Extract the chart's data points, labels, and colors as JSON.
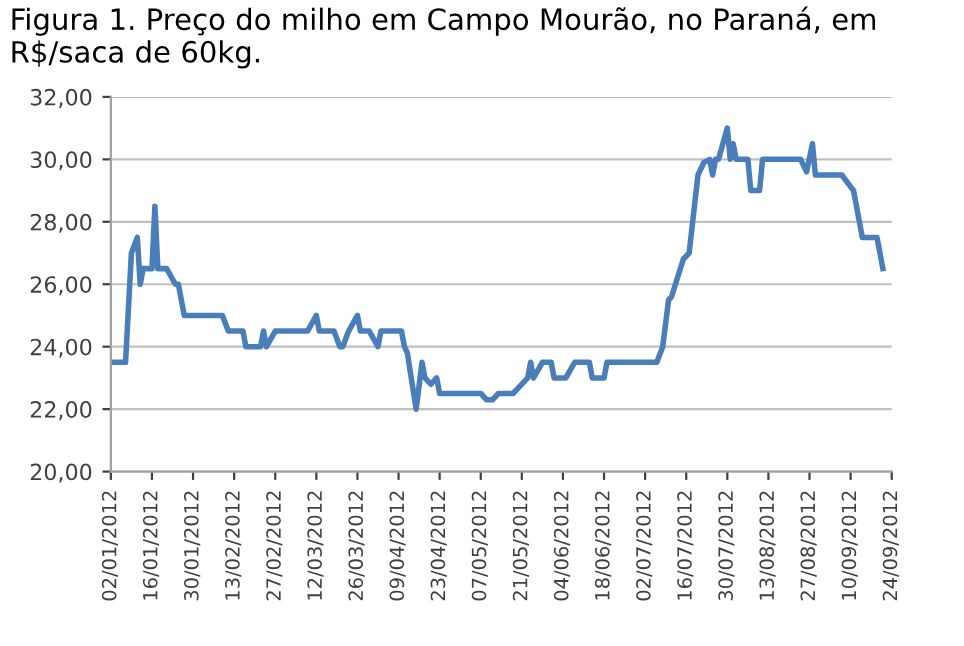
{
  "chart_data": {
    "type": "line",
    "title": "Figura 1. Preço do milho em Campo Mourão, no Paraná, em R$/saca de 60kg.",
    "x": [
      "2012-01-02",
      "2012-01-07",
      "2012-01-09",
      "2012-01-11",
      "2012-01-12",
      "2012-01-13",
      "2012-01-16",
      "2012-01-17",
      "2012-01-18",
      "2012-01-21",
      "2012-01-24",
      "2012-01-25",
      "2012-01-27",
      "2012-02-09",
      "2012-02-11",
      "2012-02-16",
      "2012-02-17",
      "2012-02-22",
      "2012-02-23",
      "2012-02-24",
      "2012-02-27",
      "2012-03-09",
      "2012-03-12",
      "2012-03-13",
      "2012-03-18",
      "2012-03-20",
      "2012-03-21",
      "2012-03-23",
      "2012-03-26",
      "2012-03-27",
      "2012-03-30",
      "2012-04-02",
      "2012-04-03",
      "2012-04-10",
      "2012-04-11",
      "2012-04-12",
      "2012-04-15",
      "2012-04-17",
      "2012-04-18",
      "2012-04-20",
      "2012-04-22",
      "2012-04-23",
      "2012-05-07",
      "2012-05-09",
      "2012-05-11",
      "2012-05-13",
      "2012-05-18",
      "2012-05-21",
      "2012-05-23",
      "2012-05-24",
      "2012-05-25",
      "2012-05-28",
      "2012-05-31",
      "2012-06-01",
      "2012-06-05",
      "2012-06-08",
      "2012-06-13",
      "2012-06-14",
      "2012-06-18",
      "2012-06-19",
      "2012-07-06",
      "2012-07-08",
      "2012-07-10",
      "2012-07-11",
      "2012-07-15",
      "2012-07-17",
      "2012-07-20",
      "2012-07-22",
      "2012-07-24",
      "2012-07-25",
      "2012-07-26",
      "2012-07-27",
      "2012-07-30",
      "2012-07-31",
      "2012-08-01",
      "2012-08-02",
      "2012-08-06",
      "2012-08-07",
      "2012-08-10",
      "2012-08-11",
      "2012-08-24",
      "2012-08-26",
      "2012-08-28",
      "2012-08-29",
      "2012-09-07",
      "2012-09-11",
      "2012-09-14",
      "2012-09-19",
      "2012-09-21"
    ],
    "series": [
      {
        "color": "#4a7ebb",
        "values": [
          23.5,
          23.5,
          27,
          27.5,
          26,
          26.5,
          26.5,
          28.5,
          26.5,
          26.5,
          26,
          26,
          25,
          25,
          24.5,
          24.5,
          24,
          24,
          24.5,
          24,
          24.5,
          24.5,
          25,
          24.5,
          24.5,
          24,
          24,
          24.5,
          25,
          24.5,
          24.5,
          24,
          24.5,
          24.5,
          24,
          23.8,
          22,
          23.5,
          23,
          22.8,
          23,
          22.5,
          22.5,
          22.3,
          22.3,
          22.5,
          22.5,
          22.8,
          23,
          23.5,
          23,
          23.5,
          23.5,
          23,
          23,
          23.5,
          23.5,
          23,
          23,
          23.5,
          23.5,
          24,
          25.5,
          25.6,
          26.8,
          27,
          29.5,
          29.9,
          30,
          29.5,
          30,
          30,
          31,
          30,
          30.5,
          30,
          30,
          29,
          29,
          30,
          30,
          29.6,
          30.5,
          29.5,
          29.5,
          29,
          27.5,
          27.5,
          26.5
        ]
      }
    ],
    "xlim": [
      "2012-01-02",
      "2012-09-24"
    ],
    "xticks": [
      {
        "value": "2012-01-02",
        "label": "02/01/2012"
      },
      {
        "value": "2012-01-16",
        "label": "16/01/2012"
      },
      {
        "value": "2012-01-30",
        "label": "30/01/2012"
      },
      {
        "value": "2012-02-13",
        "label": "13/02/2012"
      },
      {
        "value": "2012-02-27",
        "label": "27/02/2012"
      },
      {
        "value": "2012-03-12",
        "label": "12/03/2012"
      },
      {
        "value": "2012-03-26",
        "label": "26/03/2012"
      },
      {
        "value": "2012-04-09",
        "label": "09/04/2012"
      },
      {
        "value": "2012-04-23",
        "label": "23/04/2012"
      },
      {
        "value": "2012-05-07",
        "label": "07/05/2012"
      },
      {
        "value": "2012-05-21",
        "label": "21/05/2012"
      },
      {
        "value": "2012-06-04",
        "label": "04/06/2012"
      },
      {
        "value": "2012-06-18",
        "label": "18/06/2012"
      },
      {
        "value": "2012-07-02",
        "label": "02/07/2012"
      },
      {
        "value": "2012-07-16",
        "label": "16/07/2012"
      },
      {
        "value": "2012-07-30",
        "label": "30/07/2012"
      },
      {
        "value": "2012-08-13",
        "label": "13/08/2012"
      },
      {
        "value": "2012-08-27",
        "label": "27/08/2012"
      },
      {
        "value": "2012-09-10",
        "label": "10/09/2012"
      },
      {
        "value": "2012-09-24",
        "label": "24/09/2012"
      }
    ],
    "ylim": [
      20,
      32
    ],
    "yticks": [
      {
        "value": 20,
        "label": "20,00"
      },
      {
        "value": 22,
        "label": "22,00"
      },
      {
        "value": 24,
        "label": "24,00"
      },
      {
        "value": 26,
        "label": "26,00"
      },
      {
        "value": 28,
        "label": "28,00"
      },
      {
        "value": 30,
        "label": "30,00"
      },
      {
        "value": 32,
        "label": "32,00"
      }
    ],
    "grid": "y"
  }
}
